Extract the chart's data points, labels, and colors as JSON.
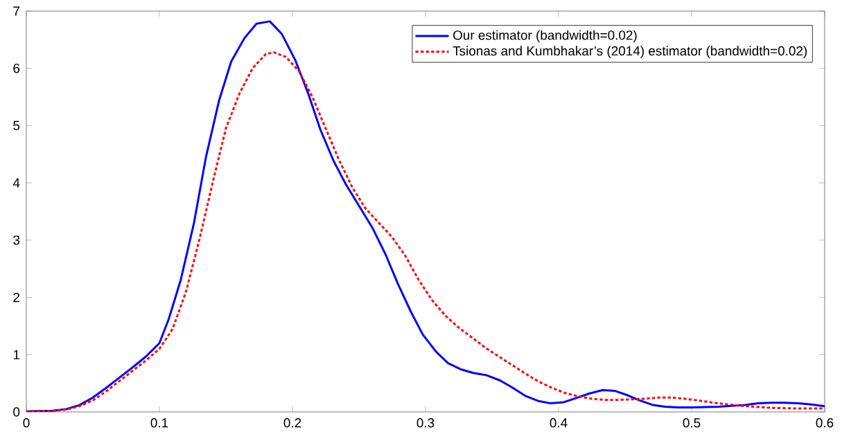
{
  "chart_data": {
    "type": "line",
    "xlim": [
      0,
      0.6
    ],
    "ylim": [
      0,
      7
    ],
    "xticks": [
      0,
      0.1,
      0.2,
      0.3,
      0.4,
      0.5,
      0.6
    ],
    "yticks": [
      0,
      1,
      2,
      3,
      4,
      5,
      6,
      7
    ],
    "legend": "top right",
    "grid": false,
    "series": [
      {
        "name": "Our estimator (bandwidth=0.02)",
        "color": "#0000ff",
        "line_style": "solid",
        "x": [
          0,
          0.02,
          0.03,
          0.04,
          0.05,
          0.06,
          0.07,
          0.08,
          0.09,
          0.1,
          0.107,
          0.116,
          0.126,
          0.135,
          0.145,
          0.154,
          0.164,
          0.173,
          0.183,
          0.192,
          0.202,
          0.212,
          0.221,
          0.231,
          0.24,
          0.25,
          0.26,
          0.27,
          0.279,
          0.289,
          0.298,
          0.308,
          0.317,
          0.327,
          0.336,
          0.346,
          0.356,
          0.365,
          0.375,
          0.385,
          0.394,
          0.404,
          0.413,
          0.423,
          0.433,
          0.442,
          0.452,
          0.461,
          0.471,
          0.48,
          0.49,
          0.5,
          0.52,
          0.54,
          0.55,
          0.56,
          0.57,
          0.58,
          0.59,
          0.6
        ],
        "values": [
          0.01,
          0.02,
          0.05,
          0.12,
          0.25,
          0.42,
          0.6,
          0.78,
          0.97,
          1.2,
          1.62,
          2.3,
          3.3,
          4.45,
          5.45,
          6.12,
          6.53,
          6.78,
          6.82,
          6.6,
          6.15,
          5.55,
          4.93,
          4.38,
          3.98,
          3.6,
          3.22,
          2.75,
          2.25,
          1.75,
          1.35,
          1.05,
          0.85,
          0.74,
          0.68,
          0.64,
          0.55,
          0.43,
          0.28,
          0.19,
          0.15,
          0.17,
          0.24,
          0.32,
          0.38,
          0.37,
          0.29,
          0.2,
          0.12,
          0.09,
          0.08,
          0.08,
          0.09,
          0.12,
          0.15,
          0.16,
          0.16,
          0.15,
          0.13,
          0.1
        ]
      },
      {
        "name": "Tsionas and Kumbhakar’s (2014) estimator (bandwidth=0.02)",
        "color": "#ff0000",
        "line_style": "dotted",
        "x": [
          0,
          0.02,
          0.03,
          0.04,
          0.05,
          0.06,
          0.07,
          0.08,
          0.09,
          0.1,
          0.11,
          0.12,
          0.13,
          0.14,
          0.15,
          0.16,
          0.17,
          0.18,
          0.186,
          0.195,
          0.205,
          0.215,
          0.225,
          0.235,
          0.245,
          0.255,
          0.265,
          0.275,
          0.285,
          0.295,
          0.305,
          0.315,
          0.325,
          0.335,
          0.345,
          0.355,
          0.365,
          0.375,
          0.385,
          0.395,
          0.405,
          0.415,
          0.425,
          0.435,
          0.445,
          0.455,
          0.465,
          0.475,
          0.485,
          0.495,
          0.505,
          0.52,
          0.54,
          0.56,
          0.58,
          0.6
        ],
        "values": [
          0.01,
          0.02,
          0.04,
          0.1,
          0.2,
          0.36,
          0.54,
          0.72,
          0.9,
          1.1,
          1.45,
          2.1,
          3.0,
          4.0,
          4.95,
          5.55,
          6.0,
          6.25,
          6.28,
          6.2,
          5.95,
          5.5,
          4.95,
          4.4,
          3.92,
          3.55,
          3.3,
          3.05,
          2.72,
          2.3,
          1.95,
          1.68,
          1.47,
          1.3,
          1.12,
          0.97,
          0.82,
          0.67,
          0.53,
          0.42,
          0.33,
          0.27,
          0.23,
          0.21,
          0.21,
          0.22,
          0.23,
          0.25,
          0.25,
          0.23,
          0.2,
          0.15,
          0.1,
          0.07,
          0.06,
          0.06
        ]
      }
    ]
  }
}
